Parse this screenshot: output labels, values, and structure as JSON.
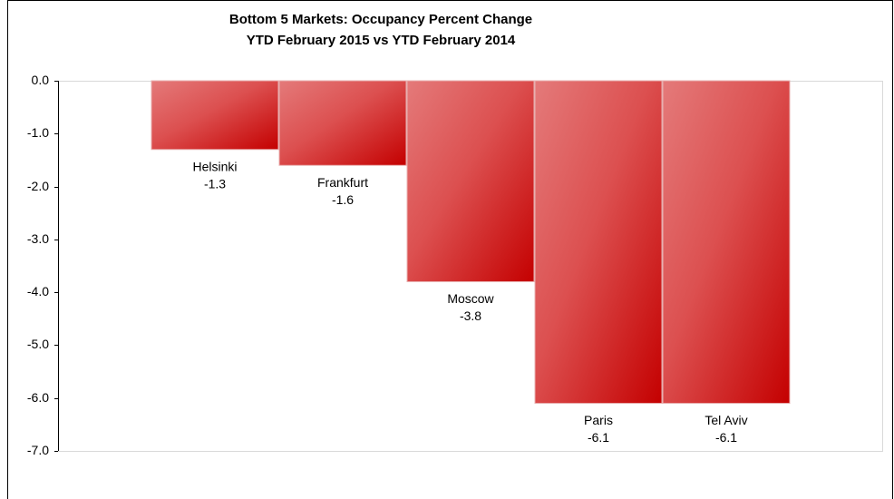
{
  "chart_data": {
    "type": "bar",
    "title": [
      "Bottom 5 Markets: Occupancy Percent Change",
      "YTD February 2015 vs YTD February 2014"
    ],
    "categories": [
      "Helsinki",
      "Frankfurt",
      "Moscow",
      "Paris",
      "Tel Aviv"
    ],
    "values": [
      -1.3,
      -1.6,
      -3.8,
      -6.1,
      -6.1
    ],
    "color": "#d42a2a",
    "ylim": [
      -7,
      0
    ],
    "yticks": [
      {
        "value": 0,
        "label": "0.0"
      },
      {
        "value": -1,
        "label": "-1.0"
      },
      {
        "value": -2,
        "label": "-2.0"
      },
      {
        "value": -3,
        "label": "-3.0"
      },
      {
        "value": -4,
        "label": "-4.0"
      },
      {
        "value": -5,
        "label": "-5.0"
      },
      {
        "value": -6,
        "label": "-6.0"
      },
      {
        "value": -7,
        "label": "-7.0"
      }
    ],
    "grid": false
  }
}
